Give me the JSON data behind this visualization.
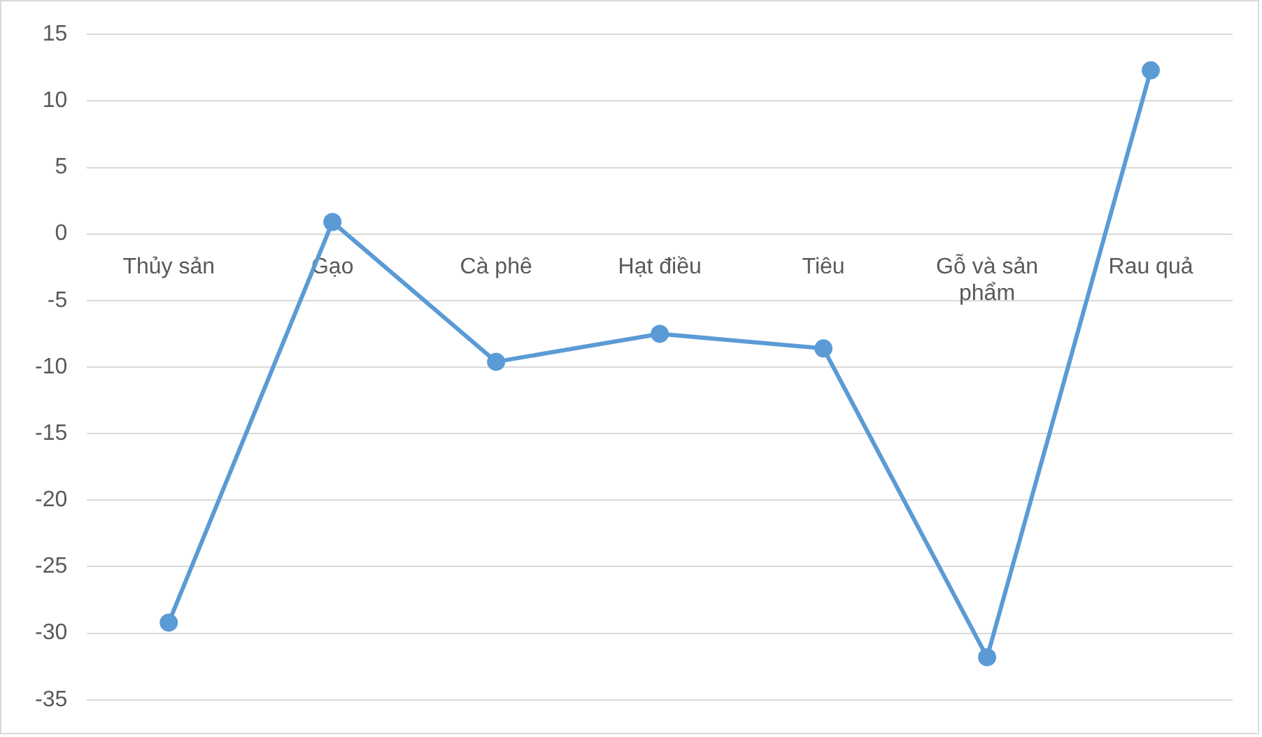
{
  "chart_data": {
    "type": "line",
    "categories": [
      "Thủy sản",
      "Gạo",
      "Cà phê",
      "Hạt điều",
      "Tiêu",
      "Gỗ và sản phẩm",
      "Rau quả"
    ],
    "values": [
      -29.2,
      0.9,
      -9.6,
      -7.5,
      -8.6,
      -31.8,
      12.3
    ],
    "color": "#5b9bd5",
    "ylim": [
      -35,
      15
    ],
    "yticks": [
      -35,
      -30,
      -25,
      -20,
      -15,
      -10,
      -5,
      0,
      5,
      10,
      15
    ],
    "grid": "y",
    "marker": "circle",
    "legend": false
  }
}
